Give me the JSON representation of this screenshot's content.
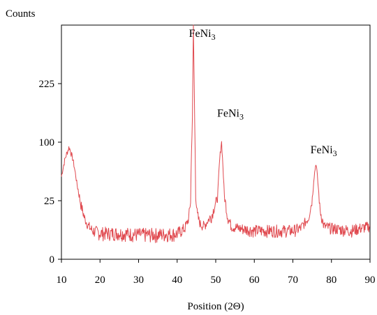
{
  "chart_data": {
    "type": "line",
    "title": "",
    "xlabel": "Position (2Θ)",
    "ylabel": "Counts",
    "xlim": [
      10,
      90
    ],
    "ylim": [
      0,
      400
    ],
    "y_scale": "sqrt",
    "grid": false,
    "legend": "none",
    "line_color": "#e0494f",
    "x_ticks": [
      10,
      20,
      30,
      40,
      50,
      60,
      70,
      80,
      90
    ],
    "y_ticks": [
      0,
      25,
      100,
      225
    ],
    "x_tick_labels": [
      "10",
      "20",
      "30",
      "40",
      "50",
      "60",
      "70",
      "80",
      "90"
    ],
    "y_tick_labels": [
      "0",
      "25",
      "100",
      "225"
    ],
    "series": [
      {
        "x": [
          10,
          11,
          12,
          13,
          14,
          15,
          16,
          17,
          18,
          20,
          25,
          30,
          35,
          40,
          42,
          43,
          43.5,
          44,
          44.2,
          44.5,
          44.8,
          45.2,
          46,
          47,
          49,
          50.5,
          51,
          51.5,
          51.8,
          52.2,
          53,
          54,
          56,
          60,
          65,
          70,
          72,
          74,
          75,
          75.5,
          76,
          76.5,
          77,
          78,
          80,
          85,
          90
        ],
        "y": [
          50,
          75,
          92,
          72,
          42,
          22,
          12,
          8,
          6,
          5,
          5,
          4.5,
          4.5,
          4.8,
          7,
          12,
          25,
          160,
          400,
          160,
          30,
          14,
          9,
          8,
          14,
          28,
          70,
          102,
          70,
          30,
          14,
          8,
          7,
          6,
          6,
          6,
          7,
          12,
          25,
          50,
          68,
          42,
          18,
          8,
          7,
          6,
          8
        ]
      }
    ],
    "annotations": [
      {
        "text": "FeNi3",
        "x": 44.5,
        "y": 360
      },
      {
        "text": "FeNi3",
        "x": 51.8,
        "y": 148
      },
      {
        "text": "FeNi3",
        "x": 76,
        "y": 82
      }
    ]
  }
}
